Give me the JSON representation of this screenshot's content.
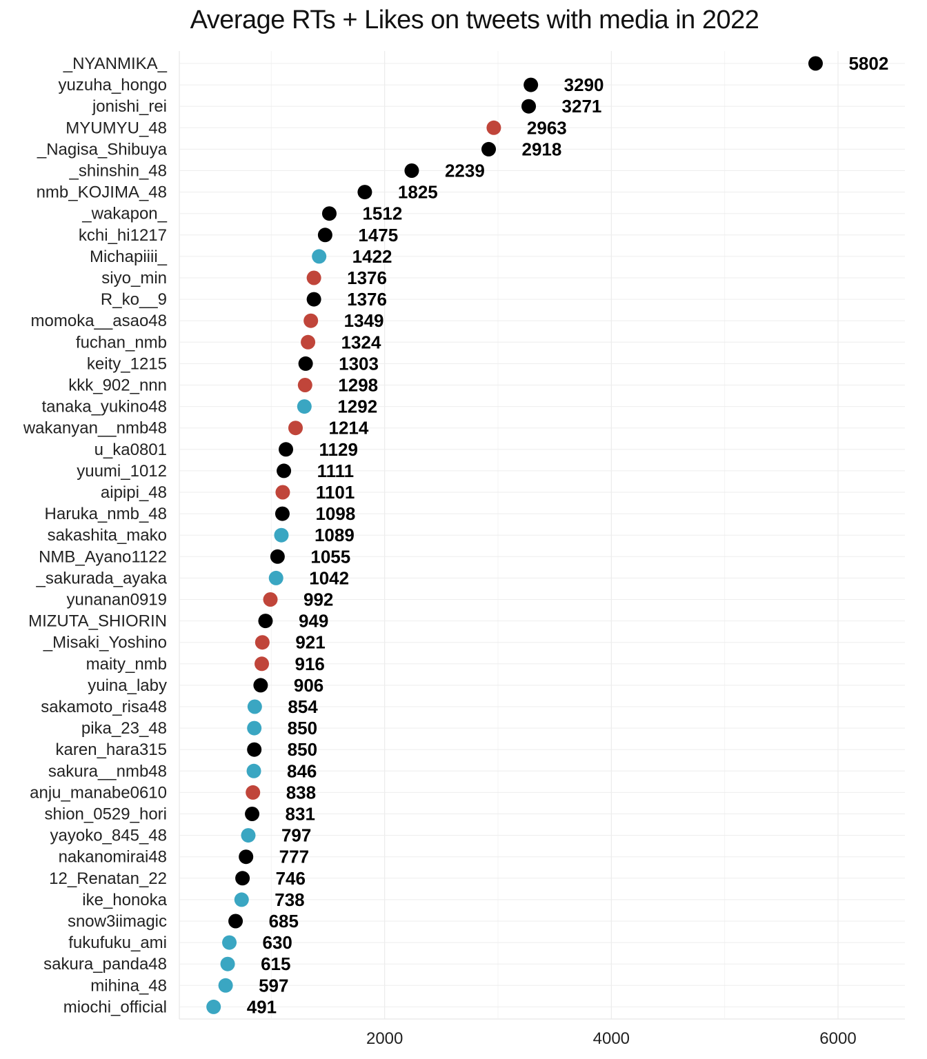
{
  "chart_data": {
    "type": "scatter",
    "title": "Average RTs + Likes on tweets with media in 2022",
    "xlabel": "",
    "ylabel": "",
    "xlim": [
      0,
      6400
    ],
    "xticks": [
      2000,
      4000,
      6000
    ],
    "grid": true,
    "legend": "none",
    "colors": {
      "black": "#000000",
      "red": "#c0453a",
      "blue": "#3aa6c2"
    },
    "points": [
      {
        "label": "_NYANMIKA_",
        "value": 5802,
        "color": "black"
      },
      {
        "label": "yuzuha_hongo",
        "value": 3290,
        "color": "black"
      },
      {
        "label": "jonishi_rei",
        "value": 3271,
        "color": "black"
      },
      {
        "label": "MYUMYU_48",
        "value": 2963,
        "color": "red"
      },
      {
        "label": "_Nagisa_Shibuya",
        "value": 2918,
        "color": "black"
      },
      {
        "label": "_shinshin_48",
        "value": 2239,
        "color": "black"
      },
      {
        "label": "nmb_KOJIMA_48",
        "value": 1825,
        "color": "black"
      },
      {
        "label": "_wakapon_",
        "value": 1512,
        "color": "black"
      },
      {
        "label": "kchi_hi1217",
        "value": 1475,
        "color": "black"
      },
      {
        "label": "Michapiiii_",
        "value": 1422,
        "color": "blue"
      },
      {
        "label": "siyo_min",
        "value": 1376,
        "color": "red"
      },
      {
        "label": "R_ko__9",
        "value": 1376,
        "color": "black"
      },
      {
        "label": "momoka__asao48",
        "value": 1349,
        "color": "red"
      },
      {
        "label": "fuchan_nmb",
        "value": 1324,
        "color": "red"
      },
      {
        "label": "keity_1215",
        "value": 1303,
        "color": "black"
      },
      {
        "label": "kkk_902_nnn",
        "value": 1298,
        "color": "red"
      },
      {
        "label": "tanaka_yukino48",
        "value": 1292,
        "color": "blue"
      },
      {
        "label": "wakanyan__nmb48",
        "value": 1214,
        "color": "red"
      },
      {
        "label": "u_ka0801",
        "value": 1129,
        "color": "black"
      },
      {
        "label": "yuumi_1012",
        "value": 1111,
        "color": "black"
      },
      {
        "label": "aipipi_48",
        "value": 1101,
        "color": "red"
      },
      {
        "label": "Haruka_nmb_48",
        "value": 1098,
        "color": "black"
      },
      {
        "label": "sakashita_mako",
        "value": 1089,
        "color": "blue"
      },
      {
        "label": "NMB_Ayano1122",
        "value": 1055,
        "color": "black"
      },
      {
        "label": "_sakurada_ayaka",
        "value": 1042,
        "color": "blue"
      },
      {
        "label": "yunanan0919",
        "value": 992,
        "color": "red"
      },
      {
        "label": "MIZUTA_SHIORIN",
        "value": 949,
        "color": "black"
      },
      {
        "label": "_Misaki_Yoshino",
        "value": 921,
        "color": "red"
      },
      {
        "label": "maity_nmb",
        "value": 916,
        "color": "red"
      },
      {
        "label": "yuina_laby",
        "value": 906,
        "color": "black"
      },
      {
        "label": "sakamoto_risa48",
        "value": 854,
        "color": "blue"
      },
      {
        "label": "pika_23_48",
        "value": 850,
        "color": "blue"
      },
      {
        "label": "karen_hara315",
        "value": 850,
        "color": "black"
      },
      {
        "label": "sakura__nmb48",
        "value": 846,
        "color": "blue"
      },
      {
        "label": "anju_manabe0610",
        "value": 838,
        "color": "red"
      },
      {
        "label": "shion_0529_hori",
        "value": 831,
        "color": "black"
      },
      {
        "label": "yayoko_845_48",
        "value": 797,
        "color": "blue"
      },
      {
        "label": "nakanomirai48",
        "value": 777,
        "color": "black"
      },
      {
        "label": "12_Renatan_22",
        "value": 746,
        "color": "black"
      },
      {
        "label": "ike_honoka",
        "value": 738,
        "color": "blue"
      },
      {
        "label": "snow3iimagic",
        "value": 685,
        "color": "black"
      },
      {
        "label": "fukufuku_ami",
        "value": 630,
        "color": "blue"
      },
      {
        "label": "sakura_panda48",
        "value": 615,
        "color": "blue"
      },
      {
        "label": "mihina_48",
        "value": 597,
        "color": "blue"
      },
      {
        "label": "miochi_official",
        "value": 491,
        "color": "blue"
      }
    ]
  }
}
